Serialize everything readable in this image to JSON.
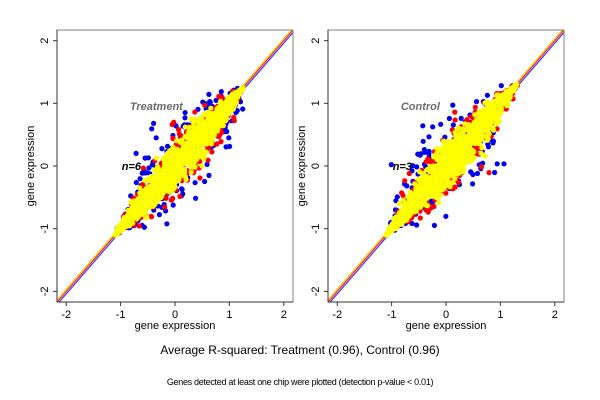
{
  "chart_data": [
    {
      "type": "scatter",
      "title": "Treatment",
      "annotation": "n=6",
      "xlabel": "gene expression",
      "ylabel": "gene expression",
      "xlim": [
        -2.17,
        2.17
      ],
      "ylim": [
        -2.17,
        2.17
      ],
      "xticks": [
        -2,
        -1,
        0,
        1,
        2
      ],
      "yticks": [
        -2,
        -1,
        0,
        1,
        2
      ],
      "grid": false,
      "reference_lines": [
        {
          "name": "blue line",
          "color": "#3333ff",
          "slope": 1,
          "intercept": -0.04
        },
        {
          "name": "red line",
          "color": "#ff2020",
          "slope": 1,
          "intercept": 0.0
        },
        {
          "name": "yellow line",
          "color": "#ffcc00",
          "slope": 1,
          "intercept": 0.03
        }
      ],
      "series": [
        {
          "name": "blue points",
          "color": "#0000ee",
          "range": [
            -1.05,
            1.25
          ],
          "spread": 0.42,
          "count": 260
        },
        {
          "name": "red points",
          "color": "#ff0000",
          "range": [
            -1.05,
            1.25
          ],
          "spread": 0.26,
          "count": 420
        },
        {
          "name": "yellow points",
          "color": "#ffff00",
          "range": [
            -1.1,
            1.25
          ],
          "spread": 0.16,
          "count": 1600
        }
      ]
    },
    {
      "type": "scatter",
      "title": "Control",
      "annotation": "n=3",
      "xlabel": "gene expression",
      "ylabel": "gene expression",
      "xlim": [
        -2.17,
        2.17
      ],
      "ylim": [
        -2.17,
        2.17
      ],
      "xticks": [
        -2,
        -1,
        0,
        1,
        2
      ],
      "yticks": [
        -2,
        -1,
        0,
        1,
        2
      ],
      "grid": false,
      "reference_lines": [
        {
          "name": "blue line",
          "color": "#3333ff",
          "slope": 1,
          "intercept": -0.04
        },
        {
          "name": "red line",
          "color": "#ff2020",
          "slope": 1,
          "intercept": 0.0
        },
        {
          "name": "yellow line",
          "color": "#ffcc00",
          "slope": 1,
          "intercept": 0.03
        }
      ],
      "series": [
        {
          "name": "blue points",
          "color": "#0000ee",
          "range": [
            -1.05,
            1.3
          ],
          "spread": 0.42,
          "count": 260
        },
        {
          "name": "red points",
          "color": "#ff0000",
          "range": [
            -1.05,
            1.3
          ],
          "spread": 0.26,
          "count": 420
        },
        {
          "name": "yellow points",
          "color": "#ffff00",
          "range": [
            -1.1,
            1.3
          ],
          "spread": 0.16,
          "count": 1600
        }
      ]
    }
  ],
  "captions": {
    "main": "Average R-squared: Treatment (0.96), Control (0.96)",
    "note": "Genes detected at least one chip were plotted (detection p-value < 0.01)"
  }
}
